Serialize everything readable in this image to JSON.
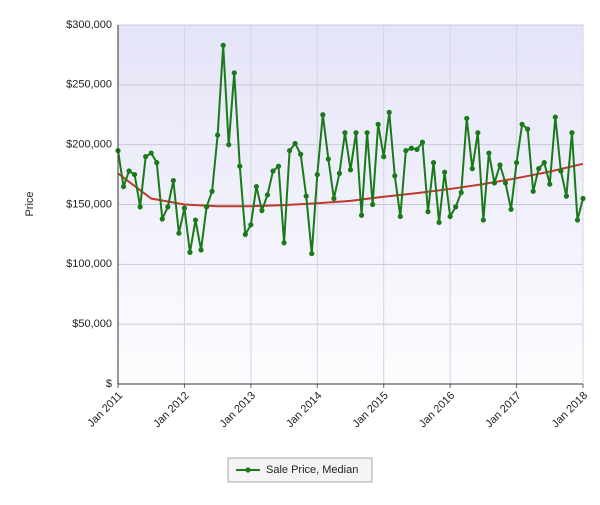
{
  "chart_data": {
    "type": "line",
    "y_label": "Price",
    "categories": [
      "Jan 2011",
      null,
      null,
      null,
      null,
      null,
      null,
      null,
      null,
      null,
      null,
      null,
      "Jan 2012",
      null,
      null,
      null,
      null,
      null,
      null,
      null,
      null,
      null,
      null,
      null,
      "Jan 2013",
      null,
      null,
      null,
      null,
      null,
      null,
      null,
      null,
      null,
      null,
      null,
      "Jan 2014",
      null,
      null,
      null,
      null,
      null,
      null,
      null,
      null,
      null,
      null,
      null,
      "Jan 2015",
      null,
      null,
      null,
      null,
      null,
      null,
      null,
      null,
      null,
      null,
      null,
      "Jan 2016",
      null,
      null,
      null,
      null,
      null,
      null,
      null,
      null,
      null,
      null,
      null,
      "Jan 2017",
      null,
      null,
      null,
      null,
      null,
      null,
      null,
      null,
      null,
      null,
      null,
      "Jan 2018"
    ],
    "series": [
      {
        "name": "Sale Price, Median",
        "color": "#1a7a1a",
        "values": [
          195000,
          165000,
          178000,
          175000,
          148000,
          190000,
          193000,
          185000,
          138000,
          148000,
          170000,
          126000,
          147000,
          110000,
          137000,
          112000,
          148000,
          161000,
          208000,
          283000,
          200000,
          260000,
          182000,
          125000,
          133000,
          165000,
          145000,
          158000,
          178000,
          182000,
          118000,
          195000,
          201000,
          192000,
          157000,
          109000,
          175000,
          225000,
          188000,
          155000,
          176000,
          210000,
          179000,
          210000,
          141000,
          210000,
          150000,
          217000,
          190000,
          227000,
          174000,
          140000,
          195000,
          197000,
          196000,
          202000,
          144000,
          185000,
          135000,
          177000,
          140000,
          148000,
          160000,
          222000,
          180000,
          210000,
          137000,
          193000,
          168000,
          183000,
          168000,
          146000,
          185000,
          217000,
          213000,
          161000,
          180000,
          185000,
          167000,
          223000,
          178000,
          157000,
          210000,
          137000,
          155000
        ]
      }
    ],
    "trend": {
      "color": "#c0392b",
      "values": [
        176000,
        155000,
        150000,
        148500,
        148500,
        149500,
        151000,
        153000,
        156500,
        159500,
        163000,
        167000,
        172000,
        177500,
        184000
      ]
    },
    "ylim": [
      0,
      300000
    ],
    "yticks": [
      {
        "value": 0,
        "label": "$"
      },
      {
        "value": 50000,
        "label": "$50,000"
      },
      {
        "value": 100000,
        "label": "$100,000"
      },
      {
        "value": 150000,
        "label": "$150,000"
      },
      {
        "value": 200000,
        "label": "$200,000"
      },
      {
        "value": 250000,
        "label": "$250,000"
      },
      {
        "value": 300000,
        "label": "$300,000"
      }
    ],
    "grid": true
  }
}
